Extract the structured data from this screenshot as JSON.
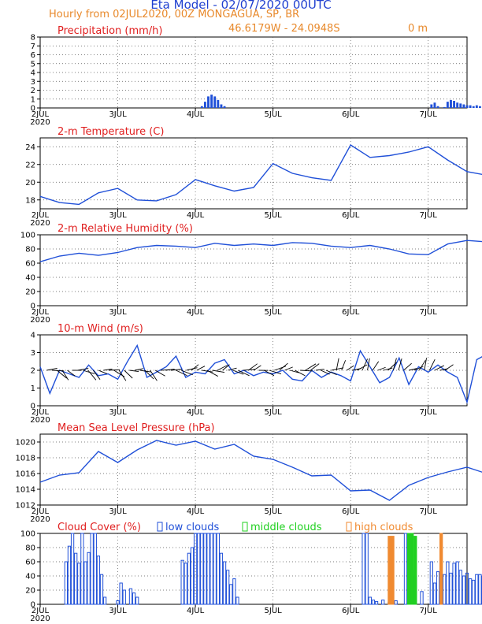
{
  "header": {
    "title": "Eta Model - 02/07/2020 00UTC",
    "subtitle": "Hourly from 02JUL2020, 00Z  MONGAGUA, SP, BR",
    "coords": "46.6179W - 24.0948S",
    "elevation": "0   m"
  },
  "x_ticks": [
    "2JUL",
    "3JUL",
    "4JUL",
    "5JUL",
    "6JUL",
    "7JUL"
  ],
  "x_year": "2020",
  "chart_data": [
    {
      "type": "bar",
      "title": "Precipitation (mm/h)",
      "ylim": [
        0,
        8
      ],
      "yticks": [
        0,
        1,
        2,
        3,
        4,
        5,
        6,
        7,
        8
      ],
      "x_hours": [
        50,
        51,
        52,
        53,
        54,
        55,
        56,
        57,
        121,
        122,
        123,
        124,
        125,
        126,
        127,
        128,
        129,
        130,
        131,
        132,
        133,
        134,
        135,
        136,
        137,
        138,
        139,
        140
      ],
      "values": [
        0.2,
        0.7,
        1.3,
        1.5,
        1.3,
        0.9,
        0.4,
        0.2,
        0.4,
        0.6,
        0.2,
        0.0,
        0.1,
        0.7,
        0.9,
        0.8,
        0.6,
        0.5,
        0.4,
        0.3,
        0.3,
        0.2,
        0.3,
        0.2,
        0.3,
        0.1,
        0.2,
        0.1
      ]
    },
    {
      "type": "line",
      "title": "2-m Temperature (C)",
      "ylim": [
        17,
        25
      ],
      "yticks": [
        18,
        20,
        22,
        24
      ],
      "x_hours": [
        0,
        6,
        12,
        18,
        24,
        30,
        36,
        42,
        48,
        54,
        60,
        66,
        72,
        78,
        84,
        90,
        96,
        102,
        108,
        114,
        120,
        126,
        132,
        138,
        144
      ],
      "values": [
        18.4,
        17.7,
        17.5,
        18.8,
        19.3,
        18.0,
        17.9,
        18.6,
        20.3,
        19.6,
        19.0,
        19.4,
        22.1,
        21.0,
        20.5,
        20.2,
        24.2,
        22.8,
        23.0,
        23.4,
        24.0,
        22.5,
        21.2,
        20.8,
        21.0
      ]
    },
    {
      "type": "line",
      "title": "2-m Relative Humidity (%)",
      "ylim": [
        0,
        100
      ],
      "yticks": [
        0,
        20,
        40,
        60,
        80,
        100
      ],
      "x_hours": [
        0,
        6,
        12,
        18,
        24,
        30,
        36,
        42,
        48,
        54,
        60,
        66,
        72,
        78,
        84,
        90,
        96,
        102,
        108,
        114,
        120,
        126,
        132,
        138,
        144
      ],
      "values": [
        62,
        70,
        74,
        71,
        75,
        82,
        85,
        84,
        82,
        88,
        85,
        87,
        85,
        89,
        88,
        84,
        82,
        85,
        80,
        73,
        72,
        87,
        92,
        90,
        90
      ]
    },
    {
      "type": "line",
      "title": "10-m Wind (m/s)",
      "ylim": [
        0,
        4
      ],
      "yticks": [
        0,
        1,
        2,
        3,
        4
      ],
      "x_hours": [
        0,
        3,
        6,
        9,
        12,
        15,
        18,
        21,
        24,
        27,
        30,
        33,
        36,
        39,
        42,
        45,
        48,
        51,
        54,
        57,
        60,
        63,
        66,
        69,
        72,
        75,
        78,
        81,
        84,
        87,
        90,
        93,
        96,
        99,
        102,
        105,
        108,
        111,
        114,
        117,
        120,
        123,
        126,
        129,
        132,
        135,
        138,
        141,
        144
      ],
      "values": [
        2.2,
        0.7,
        2.0,
        1.8,
        1.6,
        2.3,
        1.7,
        1.8,
        1.5,
        2.5,
        3.4,
        1.6,
        1.9,
        2.2,
        2.8,
        1.6,
        1.9,
        1.8,
        2.4,
        2.6,
        1.8,
        2.0,
        1.7,
        1.9,
        1.8,
        2.0,
        1.5,
        1.4,
        2.0,
        1.6,
        1.9,
        1.7,
        1.4,
        3.1,
        2.2,
        1.3,
        1.6,
        2.7,
        1.2,
        2.2,
        1.9,
        2.3,
        1.9,
        1.6,
        0.2,
        2.6,
        2.9,
        2.0,
        1.2
      ]
    },
    {
      "type": "line",
      "title": "Mean Sea Level Pressure (hPa)",
      "ylim": [
        1012,
        1021
      ],
      "yticks": [
        1012,
        1014,
        1016,
        1018,
        1020
      ],
      "x_hours": [
        0,
        6,
        12,
        18,
        24,
        30,
        36,
        42,
        48,
        54,
        60,
        66,
        72,
        78,
        84,
        90,
        96,
        102,
        108,
        114,
        120,
        126,
        132,
        138,
        144
      ],
      "values": [
        1014.9,
        1015.8,
        1016.1,
        1018.8,
        1017.4,
        1019.0,
        1020.2,
        1019.6,
        1020.1,
        1019.1,
        1019.7,
        1018.2,
        1017.8,
        1016.8,
        1015.7,
        1015.8,
        1013.8,
        1013.9,
        1012.6,
        1014.5,
        1015.5,
        1016.2,
        1016.8,
        1016.0,
        1016.9
      ]
    },
    {
      "type": "bar",
      "title": "Cloud Cover (%)",
      "ylim": [
        0,
        100
      ],
      "yticks": [
        0,
        20,
        40,
        60,
        80,
        100
      ],
      "series": [
        {
          "name": "low clouds",
          "color": "#2050d8",
          "x_hours": [
            8,
            9,
            10,
            11,
            12,
            13,
            14,
            15,
            16,
            17,
            18,
            19,
            20,
            24,
            25,
            26,
            28,
            29,
            30,
            44,
            45,
            46,
            47,
            48,
            49,
            50,
            51,
            52,
            53,
            54,
            55,
            56,
            57,
            58,
            59,
            60,
            61,
            100,
            101,
            102,
            103,
            104,
            106,
            108,
            109,
            110,
            113,
            114,
            115,
            116,
            118,
            121,
            122,
            123,
            124,
            125,
            126,
            127,
            128,
            129,
            130,
            131,
            132,
            133,
            134,
            135,
            136,
            137,
            138,
            139,
            140,
            141,
            142,
            143
          ],
          "values": [
            60,
            82,
            100,
            72,
            58,
            100,
            60,
            73,
            100,
            100,
            68,
            42,
            10,
            5,
            30,
            20,
            22,
            16,
            10,
            62,
            58,
            72,
            80,
            100,
            100,
            100,
            100,
            100,
            100,
            100,
            100,
            72,
            60,
            48,
            28,
            36,
            10,
            100,
            100,
            10,
            6,
            4,
            6,
            3,
            5,
            5,
            100,
            100,
            48,
            40,
            18,
            60,
            30,
            46,
            40,
            42,
            60,
            44,
            58,
            60,
            48,
            40,
            44,
            36,
            34,
            42,
            42,
            40,
            38,
            42,
            44,
            40,
            40,
            40
          ]
        },
        {
          "name": "middle clouds",
          "color": "#20d020",
          "x_hours": [
            114,
            115,
            116
          ],
          "values": [
            100,
            100,
            96
          ]
        },
        {
          "name": "high clouds",
          "color": "#f08a30",
          "x_hours": [
            108,
            109,
            124
          ],
          "values": [
            96,
            96,
            100
          ]
        }
      ]
    }
  ]
}
